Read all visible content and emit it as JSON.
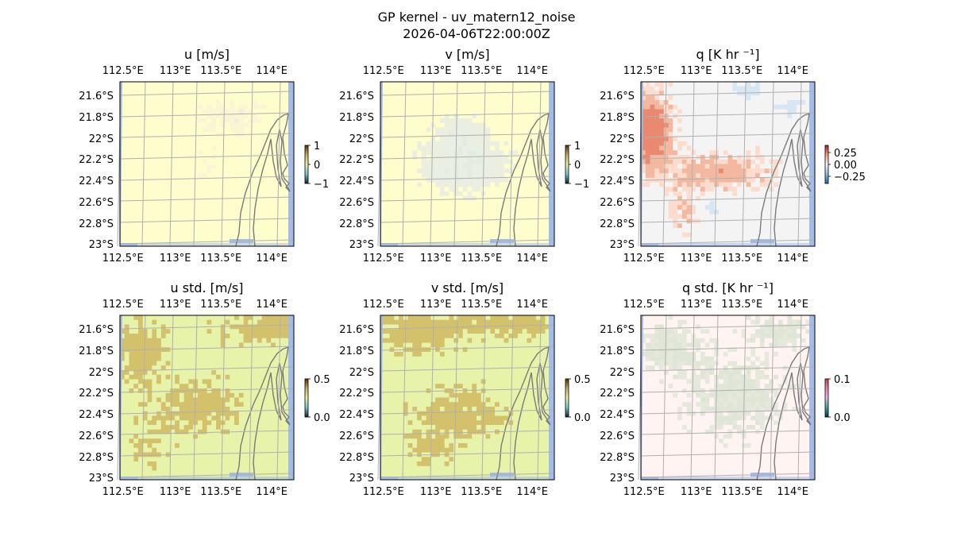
{
  "figure": {
    "title_line1": "GP kernel - uv_matern12_noise",
    "title_line2": "2026-04-06T22:00:00Z"
  },
  "axes": {
    "x_ticks": [
      "112.5°E",
      "113°E",
      "113.5°E",
      "114°E"
    ],
    "y_ticks": [
      "21.6°S",
      "21.8°S",
      "22°S",
      "22.2°S",
      "22.4°S",
      "22.6°S",
      "22.8°S",
      "23°S"
    ]
  },
  "chart_data": [
    {
      "type": "heatmap",
      "title": "u [m/s]",
      "field": "u",
      "colorbar": {
        "ticks": [
          "1",
          "0",
          "−1"
        ],
        "range": [
          -1,
          1
        ]
      },
      "palette": {
        "base": "#fefdcc",
        "shades": [
          "#faf6d4",
          "#f2f0cf",
          "#eeeedc",
          "#f8f8e0"
        ]
      },
      "grid": true,
      "extent": {
        "lon": [
          112.4,
          114.2
        ],
        "lat": [
          -23.0,
          -21.5
        ]
      }
    },
    {
      "type": "heatmap",
      "title": "v [m/s]",
      "field": "v",
      "colorbar": {
        "ticks": [
          "1",
          "0",
          "−1"
        ],
        "range": [
          -1,
          1
        ]
      },
      "palette": {
        "base": "#fefdcc",
        "shades": [
          "#eceee0",
          "#e4ece0",
          "#f4f4d8",
          "#e9efe2"
        ]
      },
      "grid": true,
      "extent": {
        "lon": [
          112.4,
          114.2
        ],
        "lat": [
          -23.0,
          -21.5
        ]
      }
    },
    {
      "type": "heatmap",
      "title": "q [K hr ⁻¹]",
      "field": "q",
      "colorbar": {
        "ticks": [
          "0.25",
          "0.00",
          "−0.25"
        ],
        "range": [
          -0.35,
          0.35
        ]
      },
      "palette": {
        "base": "#f4f4f4",
        "shades": [
          "#f3b8a0",
          "#e9896f",
          "#fbdccd",
          "#d6e6f3",
          "#c23a30"
        ]
      },
      "grid": true,
      "extent": {
        "lon": [
          112.4,
          114.2
        ],
        "lat": [
          -23.0,
          -21.5
        ]
      }
    },
    {
      "type": "heatmap",
      "title": "u std. [m/s]",
      "field": "u_std",
      "colorbar": {
        "ticks": [
          "0.5",
          "0.0"
        ],
        "range": [
          0,
          0.5
        ]
      },
      "palette": {
        "base": "#e6f3a9",
        "shades": [
          "#d3c16b"
        ]
      },
      "grid": true,
      "extent": {
        "lon": [
          112.4,
          114.2
        ],
        "lat": [
          -23.0,
          -21.5
        ]
      }
    },
    {
      "type": "heatmap",
      "title": "v std. [m/s]",
      "field": "v_std",
      "colorbar": {
        "ticks": [
          "0.5",
          "0.0"
        ],
        "range": [
          0,
          0.5
        ]
      },
      "palette": {
        "base": "#e6f3a9",
        "shades": [
          "#d3c16b"
        ]
      },
      "grid": true,
      "extent": {
        "lon": [
          112.4,
          114.2
        ],
        "lat": [
          -23.0,
          -21.5
        ]
      }
    },
    {
      "type": "heatmap",
      "title": "q std. [K hr ⁻¹]",
      "field": "q_std",
      "colorbar": {
        "ticks": [
          "0.1",
          "0.0"
        ],
        "range": [
          0,
          0.1
        ]
      },
      "palette": {
        "base": "#fff4f2",
        "shades": [
          "#e6e8dc",
          "#dfe6d6"
        ]
      },
      "grid": true,
      "extent": {
        "lon": [
          112.4,
          114.2
        ],
        "lat": [
          -23.0,
          -21.5
        ]
      }
    }
  ],
  "colors": {
    "ocean": "#a4bcea",
    "coast": "#7a7a7a",
    "grid": "#b0b0b0"
  }
}
